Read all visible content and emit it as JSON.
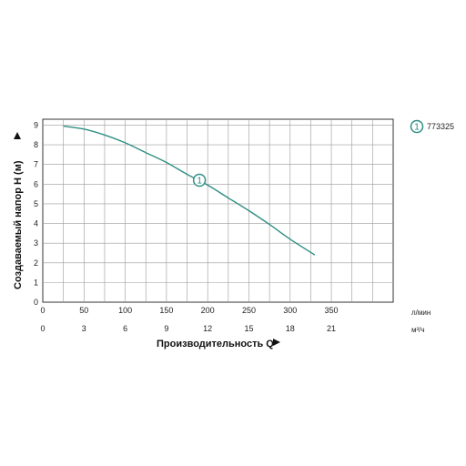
{
  "chart_data": {
    "type": "line",
    "xlabel": "Производительность Q",
    "ylabel": "Создаваемый напор H (м)",
    "x_unit_primary": "л/мин",
    "x_unit_secondary": "м³/ч",
    "xlim": [
      0,
      425
    ],
    "ylim": [
      0,
      9.3
    ],
    "x_ticks_primary": [
      "0",
      "50",
      "100",
      "150",
      "200",
      "250",
      "300",
      "350"
    ],
    "x_ticks_secondary": [
      "0",
      "3",
      "6",
      "9",
      "12",
      "15",
      "18",
      "21"
    ],
    "y_ticks": [
      "0",
      "1",
      "2",
      "3",
      "4",
      "5",
      "6",
      "7",
      "8",
      "9"
    ],
    "grid": true,
    "legend_position": "top-right",
    "series": [
      {
        "name": "773325",
        "marker_label": "1",
        "color": "#2f8f84",
        "x": [
          25,
          50,
          75,
          100,
          125,
          150,
          175,
          200,
          225,
          250,
          275,
          300,
          330
        ],
        "y": [
          8.95,
          8.8,
          8.5,
          8.1,
          7.6,
          7.1,
          6.5,
          5.95,
          5.3,
          4.65,
          3.95,
          3.2,
          2.4
        ]
      }
    ],
    "marker_at": {
      "x": 190,
      "y": 6.2
    }
  }
}
